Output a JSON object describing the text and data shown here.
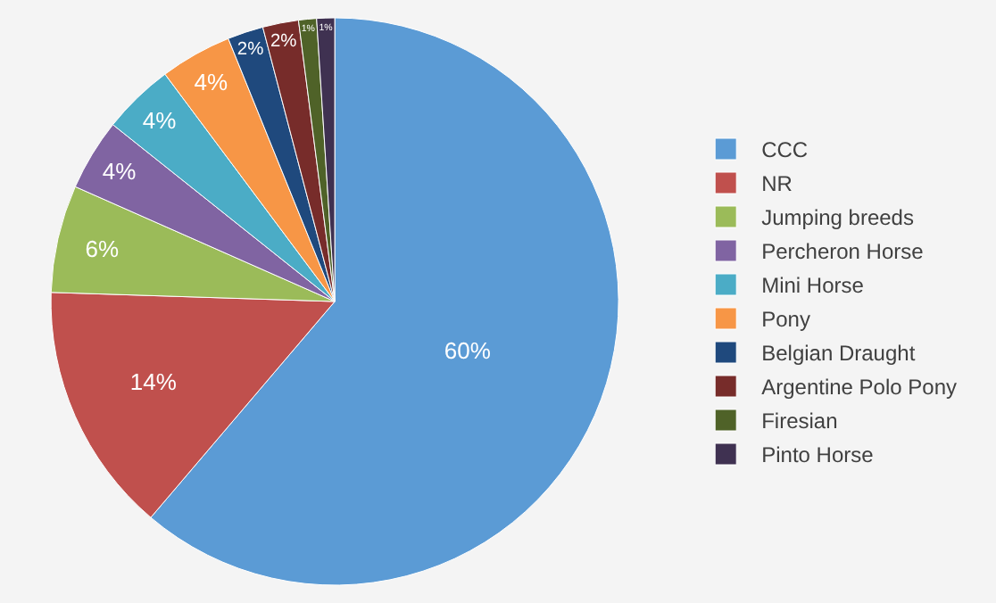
{
  "chart_data": {
    "type": "pie",
    "categories": [
      "CCC",
      "NR",
      "Jumping breeds",
      "Percheron Horse",
      "Mini Horse",
      "Pony",
      "Belgian Draught",
      "Argentine Polo Pony",
      "Firesian",
      "Pinto Horse"
    ],
    "values": [
      60,
      14,
      6,
      4,
      4,
      4,
      2,
      2,
      1,
      1
    ],
    "colors": [
      "#5b9bd5",
      "#c0504d",
      "#9bbb59",
      "#8064a2",
      "#4bacc6",
      "#f79646",
      "#1f497d",
      "#772c2a",
      "#4f6228",
      "#3f3151"
    ],
    "value_labels": [
      "60%",
      "14%",
      "6%",
      "4%",
      "4%",
      "4%",
      "2%",
      "2%",
      "1%",
      "1%"
    ],
    "legend": "right"
  }
}
